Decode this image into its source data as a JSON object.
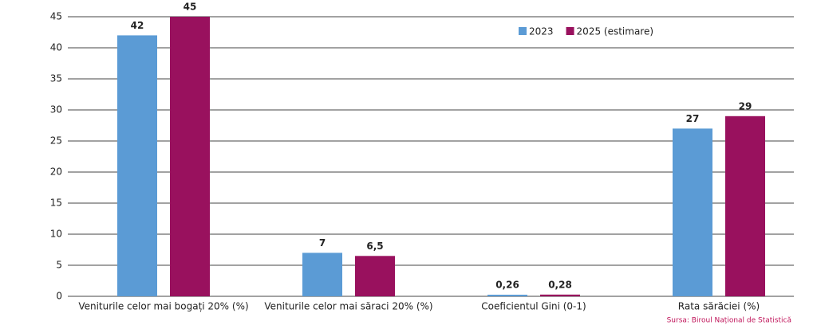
{
  "chart_data": {
    "type": "bar",
    "categories": [
      "Veniturile celor mai bogați 20% (%)",
      "Veniturile celor mai săraci 20% (%)",
      "Coeficientul Gini (0-1)",
      "Rata sărăciei (%)"
    ],
    "series": [
      {
        "name": "2023",
        "color": "#5b9bd5",
        "values": [
          42,
          7,
          0.26,
          27
        ],
        "value_labels": [
          "42",
          "7",
          "0,26",
          "27"
        ]
      },
      {
        "name": "2025 (estimare)",
        "color": "#99115e",
        "values": [
          45,
          6.5,
          0.28,
          29
        ],
        "value_labels": [
          "45",
          "6,5",
          "0,28",
          "29"
        ]
      }
    ],
    "ylim": [
      0,
      45
    ],
    "yticks": [
      0,
      5,
      10,
      15,
      20,
      25,
      30,
      35,
      40,
      45
    ],
    "grid": true,
    "legend": "top-right",
    "source": "Sursa: Biroul Național de Statistică"
  }
}
